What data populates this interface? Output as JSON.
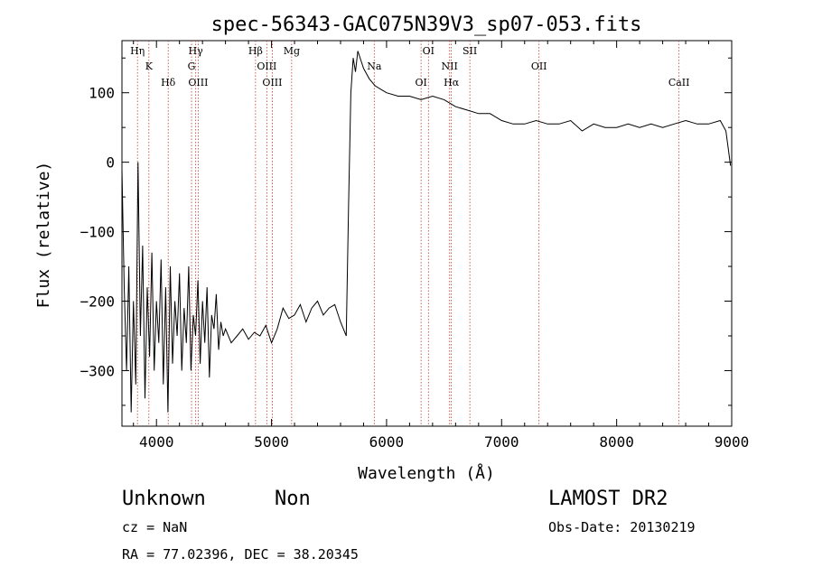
{
  "chart_data": {
    "type": "line",
    "title": "spec-56343-GAC075N39V3_sp07-053.fits",
    "xlabel": "Wavelength (Å)",
    "ylabel": "Flux (relative)",
    "xlim": [
      3700,
      9000
    ],
    "ylim": [
      -380,
      175
    ],
    "xticks": [
      4000,
      5000,
      6000,
      7000,
      8000,
      9000
    ],
    "yticks": [
      -300,
      -200,
      -100,
      0,
      100
    ],
    "xtick_labels": [
      "4000",
      "5000",
      "6000",
      "7000",
      "8000",
      "9000"
    ],
    "ytick_labels": [
      "−300",
      "−200",
      "−100",
      "0",
      "100"
    ],
    "series": [
      {
        "x": [
          3700,
          3720,
          3740,
          3760,
          3780,
          3800,
          3820,
          3840,
          3860,
          3880,
          3900,
          3920,
          3940,
          3960,
          3980,
          4000,
          4020,
          4040,
          4060,
          4080,
          4100,
          4120,
          4140,
          4160,
          4180,
          4200,
          4220,
          4240,
          4260,
          4280,
          4300,
          4320,
          4340,
          4360,
          4380,
          4400,
          4420,
          4440,
          4460,
          4480,
          4500,
          4520,
          4540,
          4560,
          4580,
          4600,
          4650,
          4700,
          4750,
          4800,
          4850,
          4900,
          4950,
          5000,
          5050,
          5100,
          5150,
          5200,
          5250,
          5300,
          5350,
          5400,
          5450,
          5500,
          5550,
          5600,
          5650,
          5670,
          5690,
          5710,
          5730,
          5750,
          5800,
          5850,
          5900,
          5950,
          6000,
          6100,
          6200,
          6300,
          6400,
          6500,
          6600,
          6700,
          6800,
          6900,
          7000,
          7100,
          7200,
          7300,
          7400,
          7500,
          7600,
          7700,
          7800,
          7900,
          8000,
          8100,
          8200,
          8300,
          8400,
          8500,
          8600,
          8700,
          8800,
          8900,
          8950,
          8990
        ],
        "y": [
          -10,
          -180,
          -300,
          -150,
          -360,
          -200,
          -320,
          0,
          -250,
          -120,
          -340,
          -180,
          -280,
          -130,
          -300,
          -200,
          -260,
          -140,
          -320,
          -180,
          -360,
          -150,
          -290,
          -200,
          -250,
          -160,
          -300,
          -210,
          -260,
          -150,
          -300,
          -220,
          -250,
          -170,
          -290,
          -200,
          -260,
          -180,
          -310,
          -220,
          -240,
          -190,
          -270,
          -230,
          -250,
          -240,
          -260,
          -250,
          -240,
          -255,
          -245,
          -250,
          -235,
          -260,
          -240,
          -210,
          -225,
          -220,
          -205,
          -230,
          -210,
          -200,
          -220,
          -210,
          -205,
          -230,
          -250,
          -60,
          100,
          150,
          130,
          160,
          135,
          120,
          110,
          105,
          100,
          95,
          95,
          90,
          95,
          90,
          80,
          75,
          70,
          70,
          60,
          55,
          55,
          60,
          55,
          55,
          60,
          45,
          55,
          50,
          50,
          55,
          50,
          55,
          50,
          55,
          60,
          55,
          55,
          60,
          45,
          -5
        ]
      }
    ],
    "line_markers": [
      {
        "label": "Hη",
        "x": 3835
      },
      {
        "label": "K",
        "x": 3934
      },
      {
        "label": "Hδ",
        "x": 4102
      },
      {
        "label": "Hγ",
        "x": 4341
      },
      {
        "label": "G",
        "x": 4305
      },
      {
        "label": "OIII",
        "x": 4363
      },
      {
        "label": "Hβ",
        "x": 4861
      },
      {
        "label": "OIII",
        "x": 4959
      },
      {
        "label": "OIII",
        "x": 5007
      },
      {
        "label": "Mg",
        "x": 5175
      },
      {
        "label": "Na",
        "x": 5893
      },
      {
        "label": "OI",
        "x": 6300
      },
      {
        "label": "OI",
        "x": 6364
      },
      {
        "label": "NII",
        "x": 6548
      },
      {
        "label": "Hα",
        "x": 6563
      },
      {
        "label": "SII",
        "x": 6724
      },
      {
        "label": "OII",
        "x": 7325
      },
      {
        "label": "CaII",
        "x": 8542
      }
    ]
  },
  "info": {
    "class": "Unknown",
    "subclass": "Non",
    "survey": "LAMOST DR2",
    "redshift": "cz = NaN",
    "obs_date": "Obs-Date: 20130219",
    "coords": "RA =  77.02396, DEC =  38.20345"
  }
}
